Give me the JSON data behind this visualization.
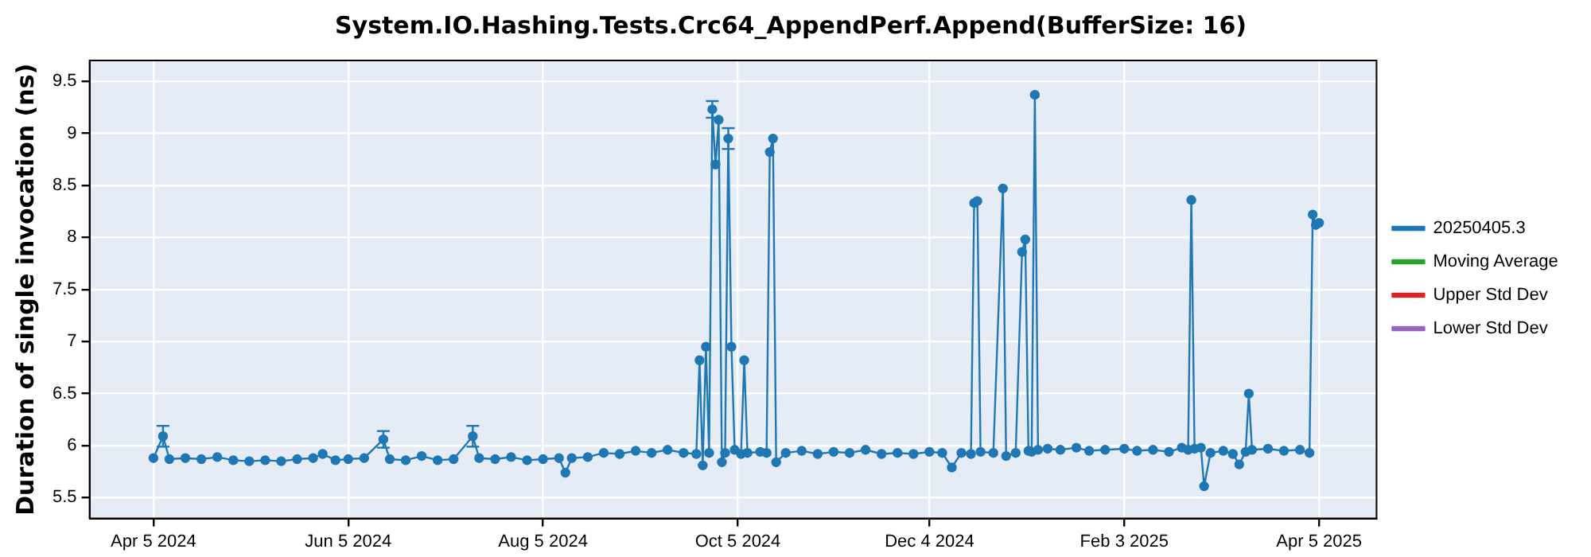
{
  "chart_data": {
    "type": "line",
    "title": "System.IO.Hashing.Tests.Crc64_AppendPerf.Append(BufferSize: 16)",
    "ylabel": "Duration of single invocation (ns)",
    "xlim": [
      "2024-03-16",
      "2025-04-23"
    ],
    "xticks": [
      {
        "value": "2024-04-05",
        "label": "Apr 5 2024"
      },
      {
        "value": "2024-06-05",
        "label": "Jun 5 2024"
      },
      {
        "value": "2024-08-05",
        "label": "Aug 5 2024"
      },
      {
        "value": "2024-10-05",
        "label": "Oct 5 2024"
      },
      {
        "value": "2024-12-04",
        "label": "Dec 4 2024"
      },
      {
        "value": "2025-02-03",
        "label": "Feb 3 2025"
      },
      {
        "value": "2025-04-05",
        "label": "Apr 5 2025"
      }
    ],
    "ylim": [
      5.3,
      9.7
    ],
    "yticks": [
      5.5,
      6,
      6.5,
      7,
      7.5,
      8,
      8.5,
      9,
      9.5
    ],
    "grid": true,
    "legend": "right",
    "marker": "circle",
    "series": [
      {
        "name": "20250405.3",
        "color": "#1f77b4",
        "x": [
          "2024-04-05",
          "2024-04-08",
          "2024-04-10",
          "2024-04-15",
          "2024-04-20",
          "2024-04-25",
          "2024-04-30",
          "2024-05-05",
          "2024-05-10",
          "2024-05-15",
          "2024-05-20",
          "2024-05-25",
          "2024-05-28",
          "2024-06-01",
          "2024-06-05",
          "2024-06-10",
          "2024-06-16",
          "2024-06-18",
          "2024-06-23",
          "2024-06-28",
          "2024-07-03",
          "2024-07-08",
          "2024-07-14",
          "2024-07-16",
          "2024-07-21",
          "2024-07-26",
          "2024-07-31",
          "2024-08-05",
          "2024-08-10",
          "2024-08-12",
          "2024-08-14",
          "2024-08-19",
          "2024-08-24",
          "2024-08-29",
          "2024-09-03",
          "2024-09-08",
          "2024-09-13",
          "2024-09-18",
          "2024-09-22",
          "2024-09-23",
          "2024-09-24",
          "2024-09-25",
          "2024-09-26",
          "2024-09-27",
          "2024-09-28",
          "2024-09-29",
          "2024-09-30",
          "2024-10-01",
          "2024-10-02",
          "2024-10-03",
          "2024-10-04",
          "2024-10-06",
          "2024-10-07",
          "2024-10-08",
          "2024-10-12",
          "2024-10-14",
          "2024-10-15",
          "2024-10-16",
          "2024-10-17",
          "2024-10-20",
          "2024-10-25",
          "2024-10-30",
          "2024-11-04",
          "2024-11-09",
          "2024-11-14",
          "2024-11-19",
          "2024-11-24",
          "2024-11-29",
          "2024-12-04",
          "2024-12-08",
          "2024-12-11",
          "2024-12-14",
          "2024-12-17",
          "2024-12-18",
          "2024-12-19",
          "2024-12-20",
          "2024-12-24",
          "2024-12-27",
          "2024-12-28",
          "2024-12-31",
          "2025-01-02",
          "2025-01-03",
          "2025-01-04",
          "2025-01-05",
          "2025-01-06",
          "2025-01-07",
          "2025-01-10",
          "2025-01-14",
          "2025-01-19",
          "2025-01-23",
          "2025-01-28",
          "2025-02-03",
          "2025-02-07",
          "2025-02-12",
          "2025-02-17",
          "2025-02-21",
          "2025-02-23",
          "2025-02-24",
          "2025-02-25",
          "2025-02-27",
          "2025-02-28",
          "2025-03-02",
          "2025-03-06",
          "2025-03-09",
          "2025-03-11",
          "2025-03-13",
          "2025-03-14",
          "2025-03-15",
          "2025-03-20",
          "2025-03-25",
          "2025-03-30",
          "2025-04-02",
          "2025-04-03",
          "2025-04-04",
          "2025-04-05"
        ],
        "values": [
          5.88,
          6.09,
          5.87,
          5.88,
          5.87,
          5.89,
          5.86,
          5.85,
          5.86,
          5.85,
          5.87,
          5.88,
          5.92,
          5.86,
          5.87,
          5.88,
          6.06,
          5.87,
          5.86,
          5.9,
          5.86,
          5.87,
          6.09,
          5.88,
          5.87,
          5.89,
          5.86,
          5.87,
          5.88,
          5.74,
          5.88,
          5.89,
          5.93,
          5.92,
          5.95,
          5.93,
          5.96,
          5.93,
          5.92,
          6.82,
          5.81,
          6.95,
          5.93,
          9.23,
          8.7,
          9.13,
          5.84,
          5.93,
          8.95,
          6.95,
          5.96,
          5.92,
          6.82,
          5.93,
          5.94,
          5.93,
          8.82,
          8.95,
          5.84,
          5.93,
          5.95,
          5.92,
          5.94,
          5.93,
          5.96,
          5.92,
          5.93,
          5.92,
          5.94,
          5.93,
          5.79,
          5.93,
          5.92,
          8.33,
          8.35,
          5.94,
          5.93,
          8.47,
          5.9,
          5.93,
          7.86,
          7.98,
          5.95,
          5.94,
          9.37,
          5.96,
          5.97,
          5.96,
          5.98,
          5.95,
          5.96,
          5.97,
          5.95,
          5.96,
          5.94,
          5.98,
          5.96,
          8.36,
          5.97,
          5.98,
          5.61,
          5.93,
          5.95,
          5.92,
          5.82,
          5.94,
          6.5,
          5.96,
          5.97,
          5.95,
          5.96,
          5.93,
          8.22,
          8.12,
          8.14
        ],
        "errors": [
          null,
          0.1,
          null,
          null,
          null,
          null,
          null,
          null,
          null,
          null,
          null,
          null,
          null,
          null,
          null,
          null,
          0.08,
          null,
          null,
          null,
          null,
          null,
          0.1,
          null,
          null,
          null,
          null,
          null,
          null,
          null,
          null,
          null,
          null,
          null,
          null,
          null,
          null,
          null,
          null,
          null,
          null,
          null,
          null,
          0.08,
          null,
          null,
          null,
          null,
          0.1,
          null,
          null,
          null,
          null,
          null,
          null,
          null,
          null,
          null,
          null,
          null,
          null,
          null,
          null,
          null,
          null,
          null,
          null,
          null,
          null,
          null,
          null,
          null,
          null,
          null,
          null,
          null,
          null,
          null,
          null,
          null,
          null,
          null,
          null,
          null,
          null,
          null,
          null,
          null,
          null,
          null,
          null,
          null,
          null,
          null,
          null,
          null,
          null,
          null,
          null,
          null,
          null,
          null,
          null,
          null,
          null,
          null,
          null,
          null,
          null,
          null,
          null,
          null,
          null,
          null,
          null
        ]
      },
      {
        "name": "Moving Average",
        "color": "#2ca02c"
      },
      {
        "name": "Upper Std Dev",
        "color": "#d62728"
      },
      {
        "name": "Lower Std Dev",
        "color": "#9467bd"
      }
    ]
  }
}
